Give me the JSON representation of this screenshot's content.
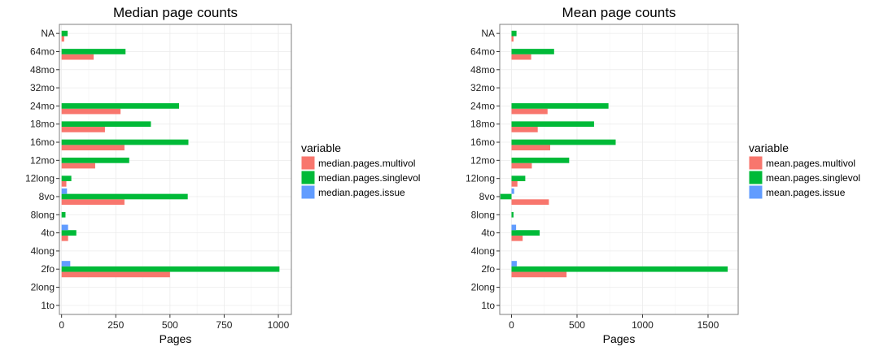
{
  "chart_data": [
    {
      "type": "bar",
      "orientation": "horizontal",
      "title": "Median page counts",
      "xlabel": "Pages",
      "ylabel": "",
      "xlim": [
        -10,
        1060
      ],
      "xticks": [
        0,
        250,
        500,
        750,
        1000
      ],
      "grid": true,
      "legend": {
        "title": "variable",
        "position": "right"
      },
      "categories": [
        "NA",
        "64mo",
        "48mo",
        "32mo",
        "24mo",
        "18mo",
        "16mo",
        "12mo",
        "12long",
        "8vo",
        "8long",
        "4to",
        "4long",
        "2fo",
        "2long",
        "1to"
      ],
      "series": [
        {
          "name": "median.pages.multivol",
          "color": "#F8766D",
          "values": [
            12,
            148,
            null,
            null,
            272,
            200,
            290,
            155,
            22,
            290,
            null,
            30,
            null,
            500,
            null,
            null
          ]
        },
        {
          "name": "median.pages.singlevol",
          "color": "#00BA38",
          "values": [
            28,
            295,
            null,
            null,
            542,
            412,
            585,
            312,
            45,
            582,
            18,
            68,
            null,
            1005,
            null,
            null
          ]
        },
        {
          "name": "median.pages.issue",
          "color": "#619CFF",
          "values": [
            null,
            null,
            null,
            null,
            null,
            null,
            null,
            null,
            null,
            25,
            null,
            30,
            null,
            40,
            null,
            null
          ]
        }
      ]
    },
    {
      "type": "bar",
      "orientation": "horizontal",
      "title": "Mean page counts",
      "xlabel": "Pages",
      "ylabel": "",
      "xlim": [
        -90,
        1730
      ],
      "xticks": [
        0,
        500,
        1000,
        1500
      ],
      "grid": true,
      "legend": {
        "title": "variable",
        "position": "right"
      },
      "categories": [
        "NA",
        "64mo",
        "48mo",
        "32mo",
        "24mo",
        "18mo",
        "16mo",
        "12mo",
        "12long",
        "8vo",
        "8long",
        "4to",
        "4long",
        "2fo",
        "2long",
        "1to"
      ],
      "series": [
        {
          "name": "mean.pages.multivol",
          "color": "#F8766D",
          "values": [
            15,
            150,
            null,
            null,
            275,
            200,
            295,
            155,
            45,
            285,
            null,
            85,
            null,
            420,
            null,
            null
          ]
        },
        {
          "name": "mean.pages.singlevol",
          "color": "#00BA38",
          "values": [
            38,
            325,
            null,
            null,
            740,
            630,
            795,
            440,
            105,
            -85,
            15,
            215,
            null,
            1650,
            null,
            null
          ]
        },
        {
          "name": "mean.pages.issue",
          "color": "#619CFF",
          "values": [
            null,
            null,
            null,
            null,
            null,
            null,
            null,
            null,
            null,
            20,
            null,
            35,
            null,
            40,
            null,
            null
          ]
        }
      ]
    }
  ]
}
